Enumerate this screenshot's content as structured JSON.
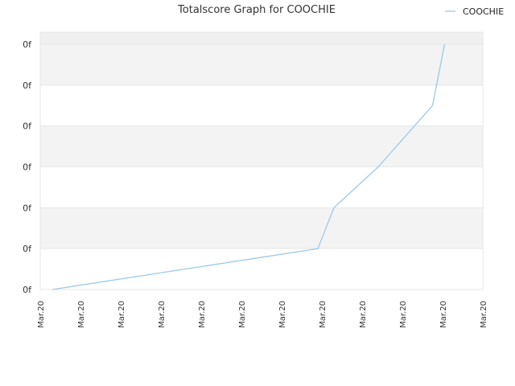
{
  "chart_data": {
    "type": "line",
    "title": "Totalscore Graph for COOCHIE",
    "xlabel": "",
    "ylabel": "",
    "legend_position": "top-right",
    "grid": true,
    "x_tick_labels": [
      "Mar.20",
      "Mar.20",
      "Mar.20",
      "Mar.20",
      "Mar.20",
      "Mar.20",
      "Mar.20",
      "Mar.20",
      "Mar.20",
      "Mar.20",
      "Mar.20",
      "Mar.20"
    ],
    "y_tick_labels": [
      "0f",
      "0f",
      "0f",
      "0f",
      "0f",
      "0f",
      "0f"
    ],
    "xlim": [
      0,
      11
    ],
    "ylim": [
      0,
      6
    ],
    "series": [
      {
        "name": "COOCHIE",
        "color": "#9ec9e8",
        "x": [
          0.3,
          6.9,
          7.3,
          8.4,
          9.75,
          10.05
        ],
        "y": [
          0,
          1,
          2,
          3,
          4.5,
          6
        ]
      }
    ]
  }
}
